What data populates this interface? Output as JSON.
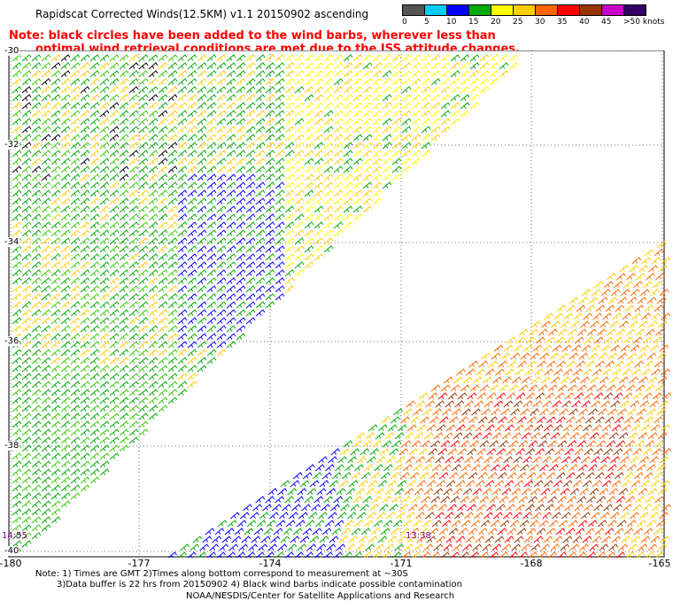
{
  "title": "Rapidscat Corrected Winds(12.5KM) v1.1 20150902 ascending",
  "note": {
    "line1": "Note: black circles have been added to the wind barbs, wherever less than",
    "line2": "optimal wind retrieval conditions are met due to the ISS attitude changes."
  },
  "legend": {
    "unit": "knots",
    "colors": [
      "#555555",
      "#00ccff",
      "#0000ff",
      "#00aa00",
      "#ffff00",
      "#ffcc00",
      "#ff6600",
      "#ff0000",
      "#993300",
      "#cc00cc",
      "#330066"
    ],
    "labels": [
      "0",
      "5",
      "10",
      "15",
      "20",
      "25",
      "30",
      "35",
      "40",
      "45",
      ">50 knots"
    ]
  },
  "axes": {
    "x_ticks": [
      "-180",
      "-177",
      "-174",
      "-171",
      "-168",
      "-165"
    ],
    "y_ticks": [
      "-30",
      "-32",
      "-34",
      "-36",
      "-38",
      "-40"
    ]
  },
  "timestamps": [
    "14:55",
    "13:38"
  ],
  "footer": {
    "line1": "Note: 1) Times are GMT 2)Times along bottom correspond to measurement at ~30S",
    "line2": "3)Data buffer is 22 hrs from 20150902 4) Black wind barbs indicate possible contamination",
    "credit": "NOAA/NESDIS/Center for Satellite Applications and Research"
  }
}
